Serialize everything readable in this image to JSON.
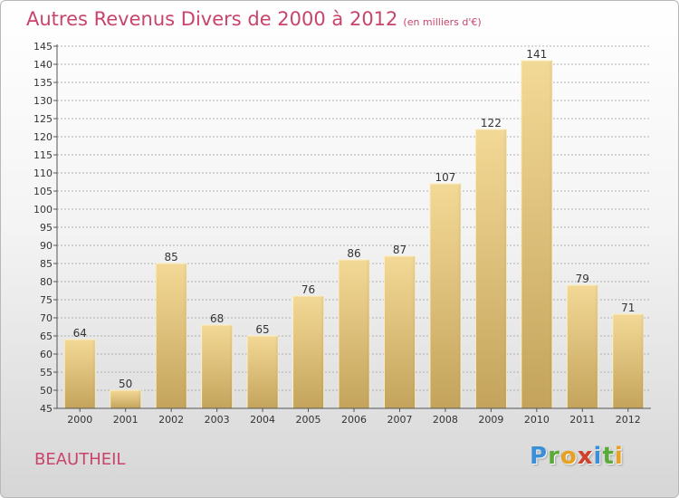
{
  "title": {
    "main": "Autres Revenus Divers de 2000 à 2012",
    "unit": "(en milliers d'€)"
  },
  "commune": "BEAUTHEIL",
  "logo": {
    "letters": [
      {
        "char": "P",
        "color": "#3a8fd6"
      },
      {
        "char": "r",
        "color": "#5aaa3a"
      },
      {
        "char": "o",
        "color": "#e8a020"
      },
      {
        "char": "x",
        "color": "#d0402a"
      },
      {
        "char": "i",
        "color": "#3a8fd6"
      },
      {
        "char": "t",
        "color": "#5aaa3a"
      },
      {
        "char": "i",
        "color": "#e8a020"
      }
    ]
  },
  "colors": {
    "title": "#c8446a",
    "bar_light": "#f3d996",
    "bar_dark": "#c4a45c",
    "grid": "#9a9a9a"
  },
  "chart_data": {
    "type": "bar",
    "categories": [
      "2000",
      "2001",
      "2002",
      "2003",
      "2004",
      "2005",
      "2006",
      "2007",
      "2008",
      "2009",
      "2010",
      "2011",
      "2012"
    ],
    "values": [
      64,
      50,
      85,
      68,
      65,
      76,
      86,
      87,
      107,
      122,
      141,
      79,
      71
    ],
    "data_labels": [
      "64",
      "50",
      "85",
      "68",
      "65",
      "76",
      "86",
      "87",
      "107",
      "122",
      "141",
      "79",
      "71"
    ],
    "ylim": [
      45,
      145
    ],
    "yticks": [
      45,
      50,
      55,
      60,
      65,
      70,
      75,
      80,
      85,
      90,
      95,
      100,
      105,
      110,
      115,
      120,
      125,
      130,
      135,
      140,
      145
    ],
    "grid": "horizontal-dashed",
    "legend": "none",
    "xlabel": "",
    "ylabel": ""
  }
}
